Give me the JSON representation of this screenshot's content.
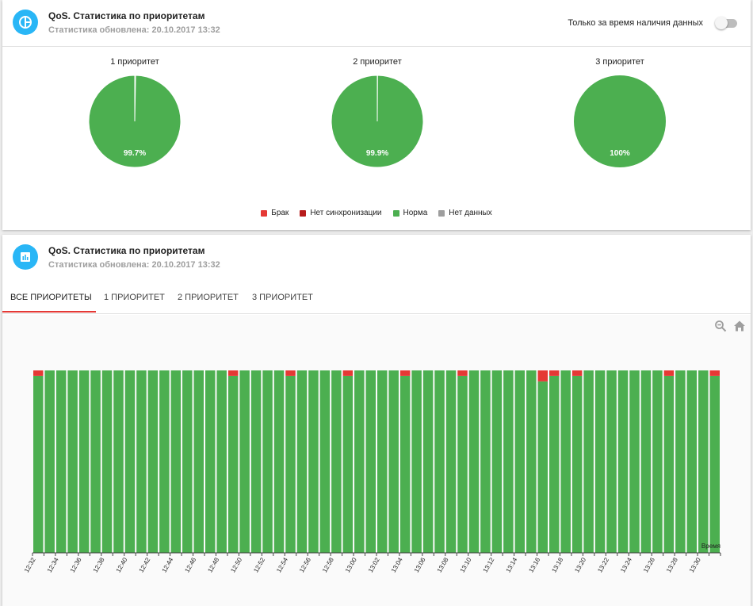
{
  "widget1": {
    "title": "QoS. Статистика по приоритетам",
    "subtitle": "Статистика обновлена: 20.10.2017 13:32",
    "toggle_label": "Только за время наличия данных",
    "toggle_on": false
  },
  "widget2": {
    "title": "QoS. Статистика по приоритетам",
    "subtitle": "Статистика обновлена: 20.10.2017 13:32",
    "tabs": [
      "ВСЕ ПРИОРИТЕТЫ",
      "1 ПРИОРИТЕТ",
      "2 ПРИОРИТЕТ",
      "3 ПРИОРИТЕТ"
    ],
    "active_tab": 0
  },
  "colors": {
    "brak": "#e53935",
    "no_sync": "#b71c1c",
    "norma": "#4caf50",
    "no_data": "#9e9e9e",
    "accent": "#29b6f6"
  },
  "icons": {
    "header1": "pie-chart-icon",
    "header2": "bar-chart-icon",
    "zoom_out": "zoom-out-icon",
    "home": "home-icon"
  },
  "chart_data": [
    {
      "type": "pie",
      "title": "1 приоритет",
      "labels": [
        "Брак",
        "Нет синхронизации",
        "Норма",
        "Нет данных"
      ],
      "values": [
        0.3,
        0,
        99.7,
        0
      ],
      "data_label": "99.7%"
    },
    {
      "type": "pie",
      "title": "2 приоритет",
      "labels": [
        "Брак",
        "Нет синхронизации",
        "Норма",
        "Нет данных"
      ],
      "values": [
        0.1,
        0,
        99.9,
        0
      ],
      "data_label": "99.9%"
    },
    {
      "type": "pie",
      "title": "3 приоритет",
      "labels": [
        "Брак",
        "Нет синхронизации",
        "Норма",
        "Нет данных"
      ],
      "values": [
        0,
        0,
        100,
        0
      ],
      "data_label": "100%"
    },
    {
      "type": "bar",
      "stacked": true,
      "xlabel": "Время",
      "ylabel": "",
      "legend": [
        {
          "name": "Брак",
          "color": "#e53935"
        },
        {
          "name": "Нет синхронизации",
          "color": "#b71c1c"
        },
        {
          "name": "Норма",
          "color": "#4caf50"
        },
        {
          "name": "Нет данных",
          "color": "#9e9e9e"
        }
      ],
      "tick_labels": [
        "12:32",
        "12:34",
        "12:36",
        "12:38",
        "12:40",
        "12:42",
        "12:44",
        "12:46",
        "12:48",
        "12:50",
        "12:52",
        "12:54",
        "12:56",
        "12:58",
        "13:00",
        "13:02",
        "13:04",
        "13:06",
        "13:08",
        "13:10",
        "13:12",
        "13:14",
        "13:16",
        "13:18",
        "13:20",
        "13:22",
        "13:24",
        "13:26",
        "13:28",
        "13:30"
      ],
      "bar_count": 60,
      "brak_percent": [
        3,
        0,
        0,
        0,
        0,
        0,
        0,
        0,
        0,
        0,
        0,
        0,
        0,
        0,
        0,
        0,
        0,
        3,
        0,
        0,
        0,
        0,
        3,
        0,
        0,
        0,
        0,
        3,
        0,
        0,
        0,
        0,
        3,
        0,
        0,
        0,
        0,
        3,
        0,
        0,
        0,
        0,
        0,
        0,
        6,
        3,
        0,
        3,
        0,
        0,
        0,
        0,
        0,
        0,
        0,
        3,
        0,
        0,
        0,
        3
      ]
    }
  ]
}
